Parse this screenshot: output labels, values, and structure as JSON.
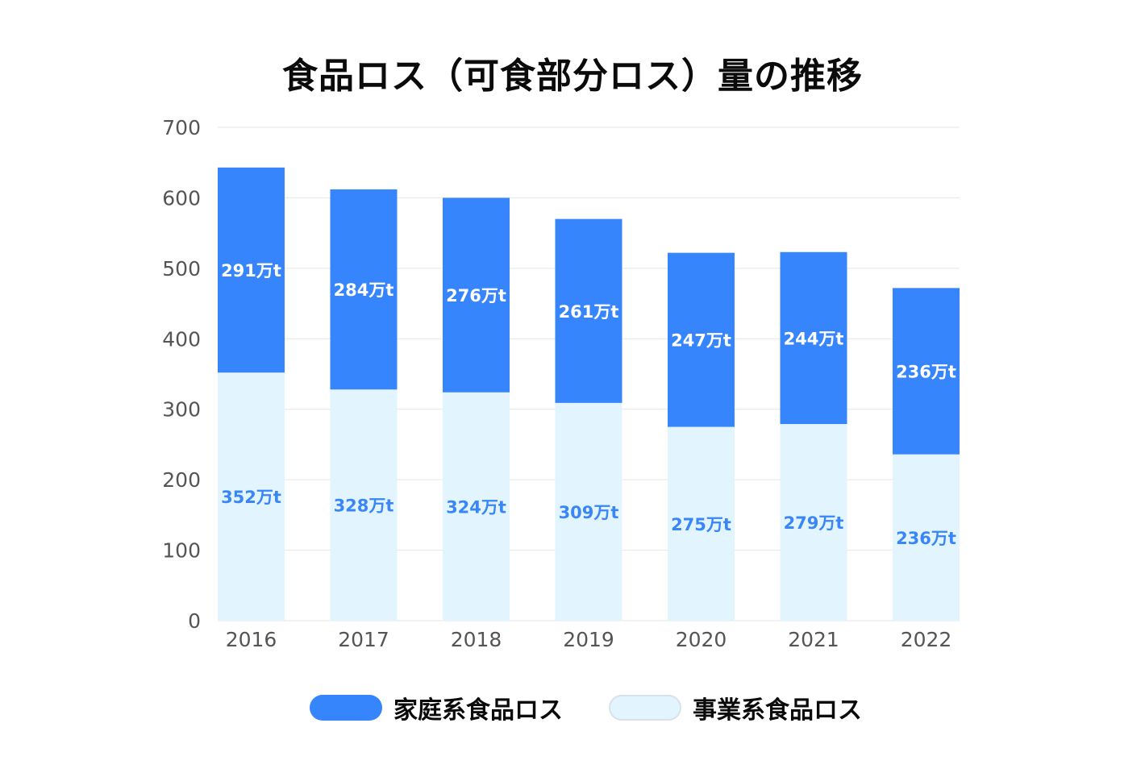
{
  "colors": {
    "household": "#3785fc",
    "business": "#e2f4fd",
    "business_text": "#3a86f7",
    "household_text": "#ffffff",
    "grid": "#e6e6e6",
    "tick_text": "#555555"
  },
  "chart_data": {
    "type": "bar",
    "stacked": true,
    "title": "食品ロス（可食部分ロス）量の推移",
    "categories": [
      "2016",
      "2017",
      "2018",
      "2019",
      "2020",
      "2021",
      "2022"
    ],
    "series": [
      {
        "name": "事業系食品ロス",
        "values": [
          352,
          328,
          324,
          309,
          275,
          279,
          236
        ],
        "data_labels": [
          "352万t",
          "328万t",
          "324万t",
          "309万t",
          "275万t",
          "279万t",
          "236万t"
        ]
      },
      {
        "name": "家庭系食品ロス",
        "values": [
          291,
          284,
          276,
          261,
          247,
          244,
          236
        ],
        "data_labels": [
          "291万t",
          "284万t",
          "276万t",
          "261万t",
          "247万t",
          "244万t",
          "236万t"
        ]
      }
    ],
    "ylim": [
      0,
      700
    ],
    "yticks": [
      0,
      100,
      200,
      300,
      400,
      500,
      600,
      700
    ],
    "grid": true,
    "legend_position": "bottom"
  }
}
